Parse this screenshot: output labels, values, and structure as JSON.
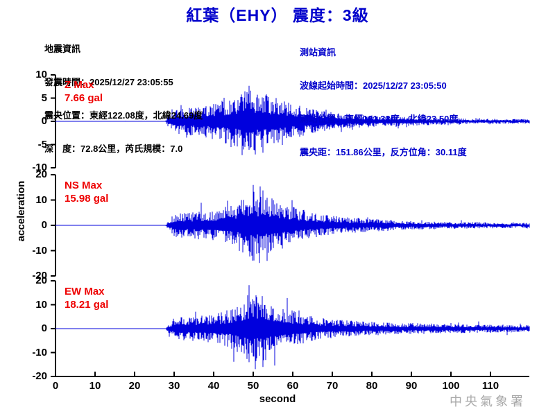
{
  "title": "紅葉（EHY） 震度：3級",
  "colors": {
    "title_blue": "#0000cc",
    "waveform_blue": "#0000dd",
    "max_label_red": "#ee0000",
    "axis_black": "#000000",
    "watermark_gray": "#aaaaaa"
  },
  "earthquake_info": {
    "heading": "地震資訊",
    "lines": [
      "發震時間：2025/12/27 23:05:55",
      "震央位置：東經122.08度，北緯24.69度",
      "深　度：72.8公里，芮氏規模：7.0"
    ]
  },
  "station_info": {
    "heading": "測站資訊",
    "lines": [
      "波線起始時間：2025/12/27 23:05:50",
      "測站位置：東經121.33度，北緯23.50度",
      "震央距：151.86公里，反方位角：30.11度"
    ]
  },
  "watermark": "中央氣象署",
  "chart_data": {
    "type": "line",
    "title": "紅葉（EHY） 震度：3級",
    "xlabel": "second",
    "ylabel": "acceleration",
    "x_ticks": [
      0,
      10,
      20,
      30,
      40,
      50,
      60,
      70,
      80,
      90,
      100,
      110
    ],
    "x_range": [
      0,
      119.8
    ],
    "grid": false,
    "panels": [
      {
        "id": "Z",
        "label": "Z Max",
        "max_label": "7.66 gal",
        "max_gal": 7.66,
        "ylim": [
          -10,
          10
        ],
        "y_ticks": [
          10,
          5,
          0,
          -5,
          -10
        ],
        "onset_s": 28,
        "peak_s": 49,
        "envelope": [
          [
            0,
            0.06
          ],
          [
            27.8,
            0.06
          ],
          [
            28.6,
            1.5
          ],
          [
            30,
            2.6
          ],
          [
            33,
            3.0
          ],
          [
            36,
            3.3
          ],
          [
            39,
            3.8
          ],
          [
            42,
            4.4
          ],
          [
            45,
            5.4
          ],
          [
            47,
            6.2
          ],
          [
            49,
            7.0
          ],
          [
            51,
            6.4
          ],
          [
            53,
            5.6
          ],
          [
            55,
            5.2
          ],
          [
            57,
            4.8
          ],
          [
            59,
            4.2
          ],
          [
            61,
            3.6
          ],
          [
            63,
            3.0
          ],
          [
            65,
            2.6
          ],
          [
            68,
            2.2
          ],
          [
            71,
            1.9
          ],
          [
            75,
            1.6
          ],
          [
            80,
            1.3
          ],
          [
            85,
            1.1
          ],
          [
            90,
            0.95
          ],
          [
            95,
            0.8
          ],
          [
            100,
            0.7
          ],
          [
            105,
            0.6
          ],
          [
            110,
            0.55
          ],
          [
            119.8,
            0.5
          ]
        ]
      },
      {
        "id": "NS",
        "label": "NS Max",
        "max_label": "15.98 gal",
        "max_gal": 15.98,
        "ylim": [
          -20,
          20
        ],
        "y_ticks": [
          20,
          10,
          0,
          -10,
          -20
        ],
        "onset_s": 28,
        "peak_s": 50,
        "envelope": [
          [
            0,
            0.07
          ],
          [
            27.8,
            0.07
          ],
          [
            28.6,
            2.0
          ],
          [
            30,
            4.5
          ],
          [
            32,
            5.0
          ],
          [
            35,
            5.5
          ],
          [
            38,
            6.0
          ],
          [
            41,
            6.5
          ],
          [
            44,
            8.0
          ],
          [
            46,
            9.5
          ],
          [
            48,
            12.0
          ],
          [
            50,
            14.5
          ],
          [
            51,
            12.5
          ],
          [
            53,
            12.0
          ],
          [
            55,
            11.0
          ],
          [
            57,
            10.0
          ],
          [
            59,
            8.5
          ],
          [
            61,
            7.0
          ],
          [
            63,
            6.0
          ],
          [
            65,
            5.0
          ],
          [
            68,
            4.2
          ],
          [
            71,
            3.6
          ],
          [
            75,
            3.0
          ],
          [
            80,
            2.5
          ],
          [
            85,
            2.1
          ],
          [
            90,
            1.8
          ],
          [
            95,
            1.6
          ],
          [
            100,
            1.4
          ],
          [
            105,
            1.3
          ],
          [
            110,
            1.2
          ],
          [
            119.8,
            1.0
          ]
        ]
      },
      {
        "id": "EW",
        "label": "EW Max",
        "max_label": "18.21 gal",
        "max_gal": 18.21,
        "ylim": [
          -20,
          20
        ],
        "y_ticks": [
          20,
          10,
          0,
          -10,
          -20
        ],
        "onset_s": 28,
        "peak_s": 49,
        "envelope": [
          [
            0,
            0.07
          ],
          [
            27.8,
            0.07
          ],
          [
            28.6,
            2.0
          ],
          [
            30,
            4.5
          ],
          [
            33,
            5.0
          ],
          [
            36,
            5.5
          ],
          [
            39,
            6.0
          ],
          [
            42,
            7.0
          ],
          [
            44,
            8.0
          ],
          [
            46,
            10.0
          ],
          [
            48,
            13.0
          ],
          [
            49,
            15.0
          ],
          [
            50.5,
            14.0
          ],
          [
            52.5,
            15.0
          ],
          [
            54,
            12.0
          ],
          [
            56,
            10.0
          ],
          [
            58,
            9.0
          ],
          [
            60,
            7.5
          ],
          [
            62,
            6.5
          ],
          [
            64,
            5.5
          ],
          [
            67,
            4.6
          ],
          [
            70,
            4.0
          ],
          [
            74,
            3.4
          ],
          [
            78,
            3.0
          ],
          [
            83,
            2.7
          ],
          [
            88,
            2.4
          ],
          [
            94,
            2.2
          ],
          [
            100,
            2.0
          ],
          [
            106,
            1.8
          ],
          [
            112,
            1.7
          ],
          [
            119.8,
            1.5
          ]
        ]
      }
    ]
  }
}
